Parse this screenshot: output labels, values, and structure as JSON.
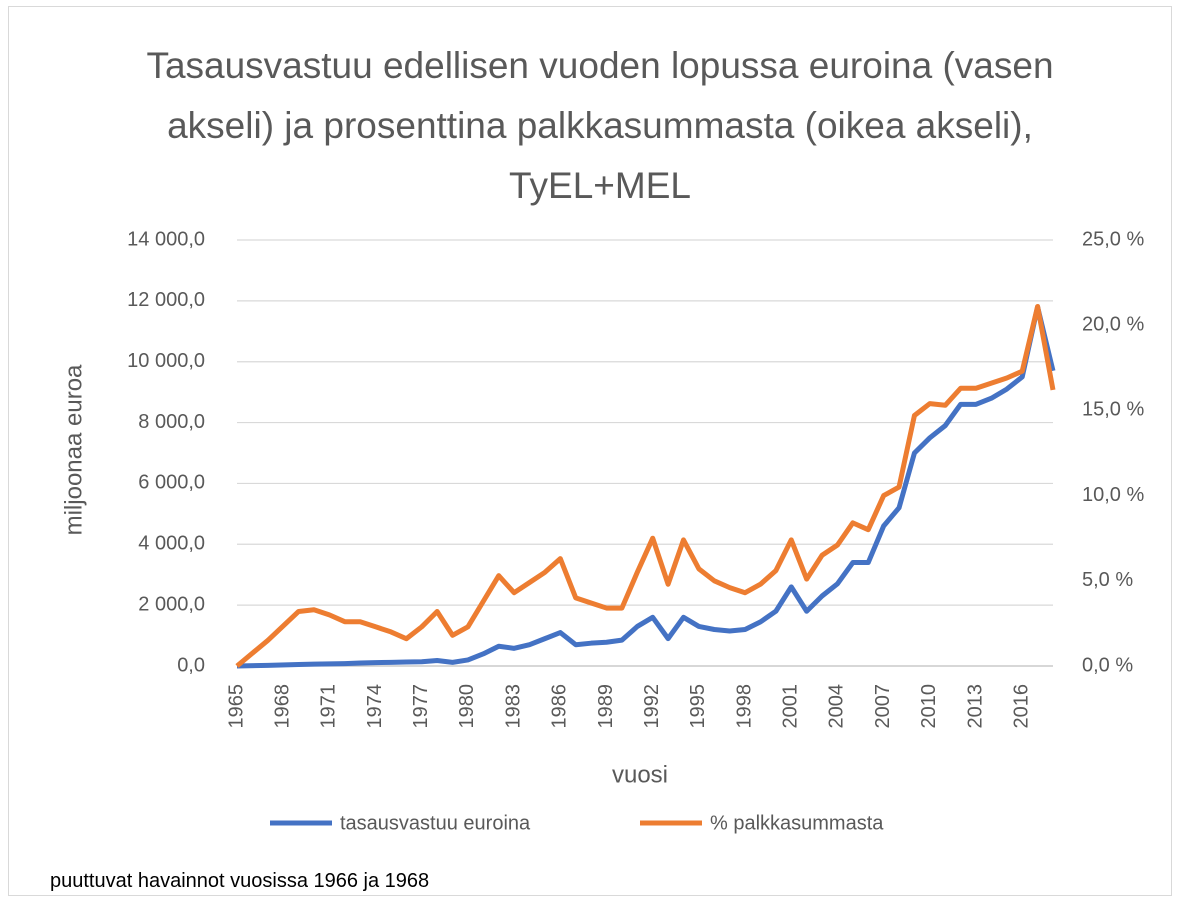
{
  "chart_data": {
    "type": "line",
    "title": "Tasausvastuu edellisen vuoden lopussa euroina (vasen akseli) ja prosenttina palkkasummasta (oikea akseli), TyEL+MEL",
    "x_label": "vuosi",
    "y_label": "miljoonaa euroa",
    "footnote": "puuttuvat havainnot vuosissa 1966  ja 1968",
    "x": [
      1965,
      1967,
      1969,
      1970,
      1971,
      1972,
      1973,
      1974,
      1975,
      1976,
      1977,
      1978,
      1979,
      1980,
      1981,
      1982,
      1983,
      1984,
      1985,
      1986,
      1987,
      1988,
      1989,
      1990,
      1991,
      1992,
      1993,
      1994,
      1995,
      1996,
      1997,
      1998,
      1999,
      2000,
      2001,
      2002,
      2003,
      2004,
      2005,
      2006,
      2007,
      2008,
      2009,
      2010,
      2011,
      2012,
      2013,
      2014,
      2015,
      2016,
      2017,
      2018
    ],
    "xlim": [
      1965,
      2018
    ],
    "xticks": [
      1965,
      1968,
      1971,
      1974,
      1977,
      1980,
      1983,
      1986,
      1989,
      1992,
      1995,
      1998,
      2001,
      2004,
      2007,
      2010,
      2013,
      2016
    ],
    "ylim": [
      0,
      14000
    ],
    "yticks": [
      {
        "value": 0,
        "label": "0,0"
      },
      {
        "value": 2000,
        "label": "2 000,0"
      },
      {
        "value": 4000,
        "label": "4 000,0"
      },
      {
        "value": 6000,
        "label": "6 000,0"
      },
      {
        "value": 8000,
        "label": "8 000,0"
      },
      {
        "value": 10000,
        "label": "10 000,0"
      },
      {
        "value": 12000,
        "label": "12 000,0"
      },
      {
        "value": 14000,
        "label": "14 000,0"
      }
    ],
    "y2lim": [
      0,
      25
    ],
    "y2ticks": [
      {
        "value": 0,
        "label": "0,0 %"
      },
      {
        "value": 5,
        "label": "5,0 %"
      },
      {
        "value": 10,
        "label": "10,0 %"
      },
      {
        "value": 15,
        "label": "15,0 %"
      },
      {
        "value": 20,
        "label": "20,0 %"
      },
      {
        "value": 25,
        "label": "25,0 %"
      }
    ],
    "grid": true,
    "legend": "bottom",
    "series": [
      {
        "name": "tasausvastuu euroina",
        "color": "#4472c4",
        "values": [
          0,
          20,
          50,
          60,
          70,
          80,
          100,
          110,
          120,
          130,
          140,
          180,
          120,
          200,
          400,
          650,
          580,
          700,
          900,
          1100,
          700,
          750,
          780,
          850,
          1300,
          1600,
          900,
          1600,
          1300,
          1200,
          1150,
          1200,
          1450,
          1800,
          2600,
          1800,
          2300,
          2700,
          3400,
          3400,
          4600,
          5200,
          7000,
          7500,
          7900,
          8600,
          8600,
          8800,
          9100,
          9500,
          11800,
          9700
        ]
      },
      {
        "name": "% palkkasummasta",
        "color": "#ed7d31",
        "axis": "y2",
        "values": [
          0,
          1.5,
          3.2,
          3.3,
          3.0,
          2.6,
          2.6,
          2.3,
          2.0,
          1.6,
          2.3,
          3.2,
          1.8,
          2.3,
          3.8,
          5.3,
          4.3,
          4.9,
          5.5,
          6.3,
          4.0,
          3.7,
          3.4,
          3.4,
          5.5,
          7.5,
          4.8,
          7.4,
          5.7,
          5.0,
          4.6,
          4.3,
          4.8,
          5.6,
          7.4,
          5.1,
          6.5,
          7.1,
          8.4,
          8.0,
          10.0,
          10.5,
          14.7,
          15.4,
          15.3,
          16.3,
          16.3,
          16.6,
          16.9,
          17.3,
          21.1,
          16.2
        ]
      }
    ]
  }
}
